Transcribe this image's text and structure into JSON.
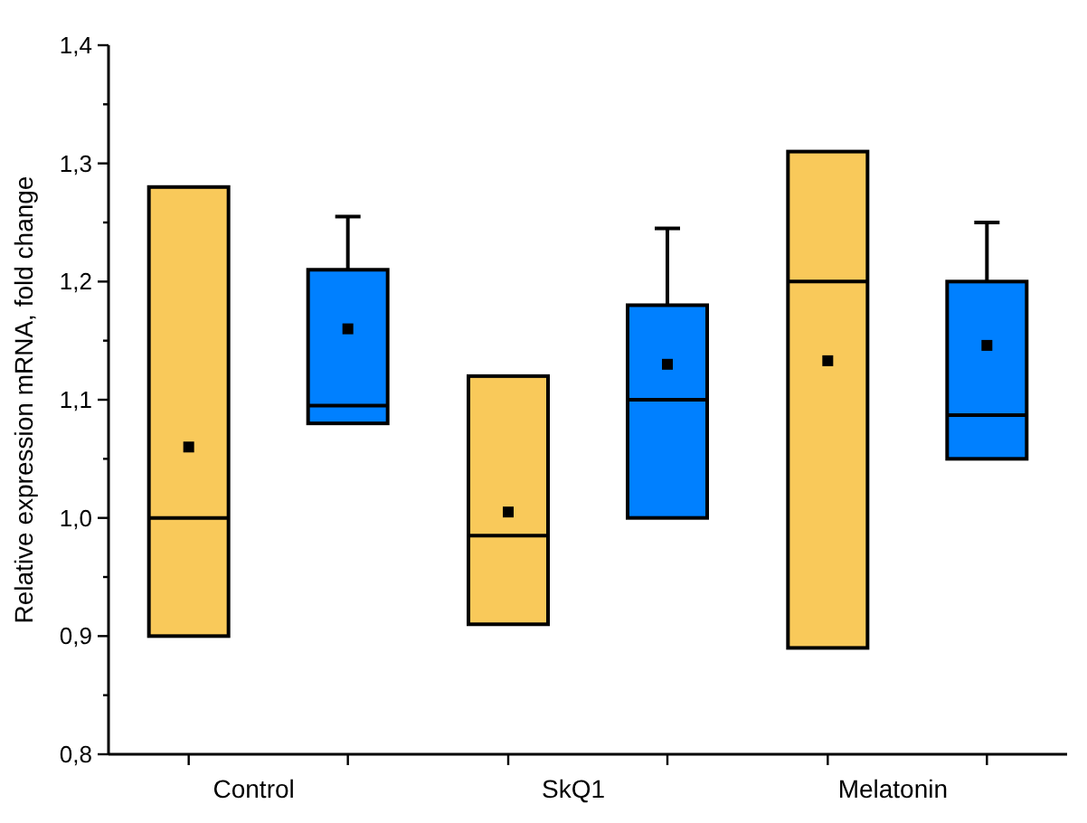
{
  "chart_data": {
    "type": "box",
    "ylabel": "Relative expression mRNA, fold change",
    "categories": [
      "Control",
      "SkQ1",
      "Melatonin"
    ],
    "ylim": [
      0.8,
      1.4
    ],
    "yticks": [
      {
        "value": 0.8,
        "label": "0,8"
      },
      {
        "value": 0.85,
        "label": null
      },
      {
        "value": 0.9,
        "label": "0,9"
      },
      {
        "value": 0.95,
        "label": null
      },
      {
        "value": 1.0,
        "label": "1,0"
      },
      {
        "value": 1.05,
        "label": null
      },
      {
        "value": 1.1,
        "label": "1,1"
      },
      {
        "value": 1.15,
        "label": null
      },
      {
        "value": 1.2,
        "label": "1,2"
      },
      {
        "value": 1.25,
        "label": null
      },
      {
        "value": 1.3,
        "label": "1,3"
      },
      {
        "value": 1.35,
        "label": null
      },
      {
        "value": 1.4,
        "label": "1,4"
      }
    ],
    "series": [
      {
        "color": "#f9c95a",
        "boxes": [
          {
            "low": 0.9,
            "q1": 0.9,
            "median": 1.0,
            "q3": 1.28,
            "high": 1.28,
            "mean": 1.06
          },
          {
            "low": 0.91,
            "q1": 0.91,
            "median": 0.985,
            "q3": 1.12,
            "high": 1.12,
            "mean": 1.005
          },
          {
            "low": 0.89,
            "q1": 0.89,
            "median": 1.2,
            "q3": 1.31,
            "high": 1.31,
            "mean": 1.133
          }
        ]
      },
      {
        "color": "#0080ff",
        "boxes": [
          {
            "low": 1.08,
            "q1": 1.08,
            "median": 1.095,
            "q3": 1.21,
            "high": 1.255,
            "mean": 1.16
          },
          {
            "low": 1.0,
            "q1": 1.0,
            "median": 1.1,
            "q3": 1.18,
            "high": 1.245,
            "mean": 1.13
          },
          {
            "low": 1.05,
            "q1": 1.05,
            "median": 1.087,
            "q3": 1.2,
            "high": 1.25,
            "mean": 1.146
          }
        ]
      }
    ]
  }
}
